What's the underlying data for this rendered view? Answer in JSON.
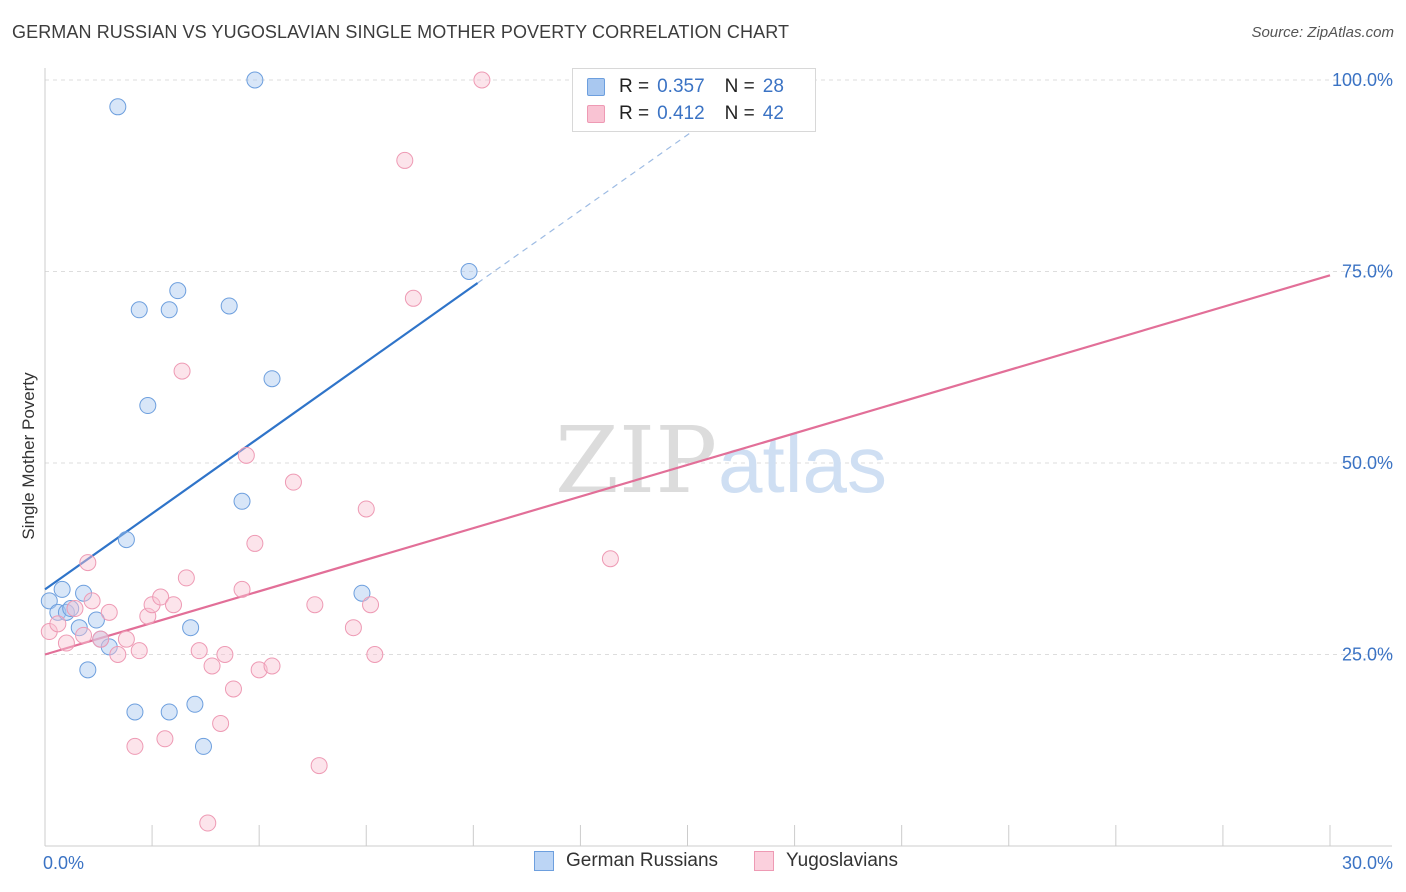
{
  "header": {
    "title": "GERMAN RUSSIAN VS YUGOSLAVIAN SINGLE MOTHER POVERTY CORRELATION CHART",
    "source": "Source: ZipAtlas.com"
  },
  "watermark": {
    "zip": "ZIP",
    "atlas": "atlas"
  },
  "legend_top": [
    {
      "r_label": "R =",
      "r_value": "0.357",
      "n_label": "N =",
      "n_value": "28",
      "color": "#a9c8f0",
      "border": "#6d9fde"
    },
    {
      "r_label": "R =",
      "r_value": "0.412",
      "n_label": "N =",
      "n_value": "42",
      "color": "#f9c3d3",
      "border": "#ee9ab4"
    }
  ],
  "legend_bottom": [
    {
      "label": "German Russians",
      "color": "#bcd5f5",
      "border": "#6d9fde"
    },
    {
      "label": "Yugoslavians",
      "color": "#fbd0dd",
      "border": "#ee9ab4"
    }
  ],
  "chart_data": {
    "type": "scatter",
    "title": "GERMAN RUSSIAN VS YUGOSLAVIAN SINGLE MOTHER POVERTY CORRELATION CHART",
    "xlabel": "",
    "ylabel": "Single Mother Poverty",
    "xlim": [
      0,
      30
    ],
    "ylim": [
      0,
      100
    ],
    "x_tick_labels": [
      "0.0%",
      "30.0%"
    ],
    "y_tick_labels": [
      "25.0%",
      "50.0%",
      "75.0%",
      "100.0%"
    ],
    "y_ticks": [
      25,
      50,
      75,
      100
    ],
    "grid": true,
    "series": [
      {
        "name": "German Russians",
        "color": "#6d9fde",
        "fill": "rgba(168,200,240,0.45)",
        "line_color": "#2f74c9",
        "trend": {
          "x0": 0,
          "y0": 33.5,
          "x1": 10.1,
          "y1": 73.5
        },
        "trend_ext": {
          "x0": 10.1,
          "y0": 73.5,
          "x1": 15.8,
          "y1": 96.0
        },
        "x": [
          0.1,
          0.3,
          0.4,
          0.5,
          0.6,
          0.8,
          0.9,
          1.0,
          1.2,
          1.3,
          1.5,
          1.7,
          1.9,
          2.1,
          2.2,
          2.4,
          2.9,
          2.9,
          3.1,
          3.4,
          3.5,
          3.7,
          4.3,
          4.6,
          4.9,
          5.3,
          7.4,
          9.9
        ],
        "y": [
          32.0,
          30.5,
          33.5,
          30.5,
          31.0,
          28.5,
          33.0,
          23.0,
          29.5,
          27.0,
          26.0,
          96.5,
          40.0,
          17.5,
          70.0,
          57.5,
          70.0,
          17.5,
          72.5,
          28.5,
          18.5,
          13.0,
          70.5,
          45.0,
          100.0,
          61.0,
          33.0,
          75.0
        ]
      },
      {
        "name": "Yugoslavians",
        "color": "#ee9ab4",
        "fill": "rgba(249,195,211,0.45)",
        "line_color": "#e26f98",
        "trend": {
          "x0": 0,
          "y0": 25.0,
          "x1": 30,
          "y1": 74.5
        },
        "x": [
          0.1,
          0.3,
          0.5,
          0.7,
          0.9,
          1.0,
          1.1,
          1.3,
          1.5,
          1.7,
          1.9,
          2.1,
          2.2,
          2.4,
          2.5,
          2.7,
          2.8,
          3.0,
          3.2,
          3.3,
          3.6,
          3.8,
          3.9,
          4.1,
          4.2,
          4.4,
          4.6,
          4.7,
          4.9,
          5.0,
          5.3,
          5.8,
          6.3,
          6.4,
          7.2,
          7.5,
          7.6,
          7.7,
          8.4,
          8.6,
          10.2,
          13.2
        ],
        "y": [
          28.0,
          29.0,
          26.5,
          31.0,
          27.5,
          37.0,
          32.0,
          27.0,
          30.5,
          25.0,
          27.0,
          13.0,
          25.5,
          30.0,
          31.5,
          32.5,
          14.0,
          31.5,
          62.0,
          35.0,
          25.5,
          3.0,
          23.5,
          16.0,
          25.0,
          20.5,
          33.5,
          51.0,
          39.5,
          23.0,
          23.5,
          47.5,
          31.5,
          10.5,
          28.5,
          44.0,
          31.5,
          25.0,
          89.5,
          71.5,
          100.0,
          37.5
        ]
      }
    ]
  }
}
